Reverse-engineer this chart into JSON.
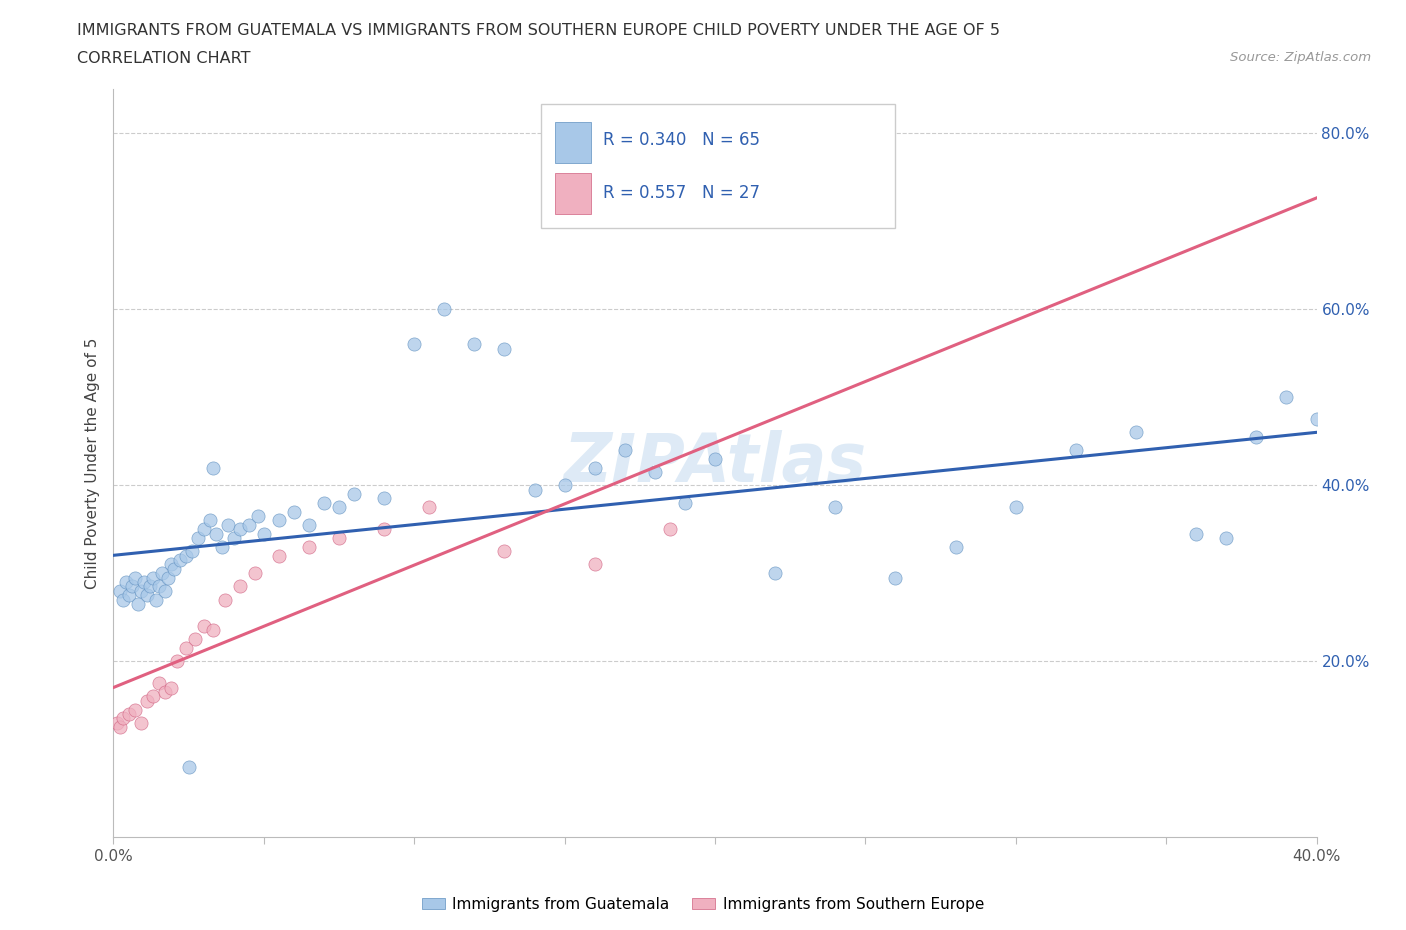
{
  "title_line1": "IMMIGRANTS FROM GUATEMALA VS IMMIGRANTS FROM SOUTHERN EUROPE CHILD POVERTY UNDER THE AGE OF 5",
  "title_line2": "CORRELATION CHART",
  "source_text": "Source: ZipAtlas.com",
  "ylabel": "Child Poverty Under the Age of 5",
  "xlim": [
    0.0,
    0.4
  ],
  "ylim": [
    0.0,
    0.85
  ],
  "xtick_positions": [
    0.0,
    0.05,
    0.1,
    0.15,
    0.2,
    0.25,
    0.3,
    0.35,
    0.4
  ],
  "xticklabels": [
    "0.0%",
    "",
    "",
    "",
    "",
    "",
    "",
    "",
    "40.0%"
  ],
  "ytick_positions": [
    0.2,
    0.4,
    0.6,
    0.8
  ],
  "ytick_labels": [
    "20.0%",
    "40.0%",
    "60.0%",
    "80.0%"
  ],
  "R_guatemala": 0.34,
  "N_guatemala": 65,
  "R_southern_europe": 0.557,
  "N_southern_europe": 27,
  "color_guatemala": "#a8c8e8",
  "color_southern_europe": "#f0b0c0",
  "edge_guatemala": "#6090c0",
  "edge_southern_europe": "#d06080",
  "trendline_guatemala_color": "#3060b0",
  "trendline_southern_europe_color": "#e06080",
  "watermark_color": "#c8ddf0",
  "legend_R_color": "#3060b0",
  "legend_text_color": "#222222",
  "guatemala_x": [
    0.002,
    0.003,
    0.004,
    0.005,
    0.006,
    0.007,
    0.008,
    0.009,
    0.01,
    0.011,
    0.012,
    0.013,
    0.014,
    0.015,
    0.016,
    0.017,
    0.018,
    0.019,
    0.02,
    0.022,
    0.024,
    0.026,
    0.028,
    0.03,
    0.032,
    0.034,
    0.036,
    0.038,
    0.04,
    0.042,
    0.045,
    0.048,
    0.05,
    0.055,
    0.06,
    0.065,
    0.07,
    0.075,
    0.08,
    0.09,
    0.1,
    0.11,
    0.12,
    0.13,
    0.14,
    0.15,
    0.16,
    0.17,
    0.18,
    0.19,
    0.2,
    0.22,
    0.24,
    0.26,
    0.28,
    0.3,
    0.32,
    0.34,
    0.36,
    0.37,
    0.38,
    0.39,
    0.4,
    0.025,
    0.033
  ],
  "guatemala_y": [
    0.28,
    0.27,
    0.29,
    0.275,
    0.285,
    0.295,
    0.265,
    0.28,
    0.29,
    0.275,
    0.285,
    0.295,
    0.27,
    0.285,
    0.3,
    0.28,
    0.295,
    0.31,
    0.305,
    0.315,
    0.32,
    0.325,
    0.34,
    0.35,
    0.36,
    0.345,
    0.33,
    0.355,
    0.34,
    0.35,
    0.355,
    0.365,
    0.345,
    0.36,
    0.37,
    0.355,
    0.38,
    0.375,
    0.39,
    0.385,
    0.56,
    0.6,
    0.56,
    0.555,
    0.395,
    0.4,
    0.42,
    0.44,
    0.415,
    0.38,
    0.43,
    0.3,
    0.375,
    0.295,
    0.33,
    0.375,
    0.44,
    0.46,
    0.345,
    0.34,
    0.455,
    0.5,
    0.475,
    0.08,
    0.42
  ],
  "southern_europe_x": [
    0.001,
    0.002,
    0.003,
    0.005,
    0.007,
    0.009,
    0.011,
    0.013,
    0.015,
    0.017,
    0.019,
    0.021,
    0.024,
    0.027,
    0.03,
    0.033,
    0.037,
    0.042,
    0.047,
    0.055,
    0.065,
    0.075,
    0.09,
    0.105,
    0.13,
    0.16,
    0.185
  ],
  "southern_europe_y": [
    0.13,
    0.125,
    0.135,
    0.14,
    0.145,
    0.13,
    0.155,
    0.16,
    0.175,
    0.165,
    0.17,
    0.2,
    0.215,
    0.225,
    0.24,
    0.235,
    0.27,
    0.285,
    0.3,
    0.32,
    0.33,
    0.34,
    0.35,
    0.375,
    0.325,
    0.31,
    0.35
  ]
}
